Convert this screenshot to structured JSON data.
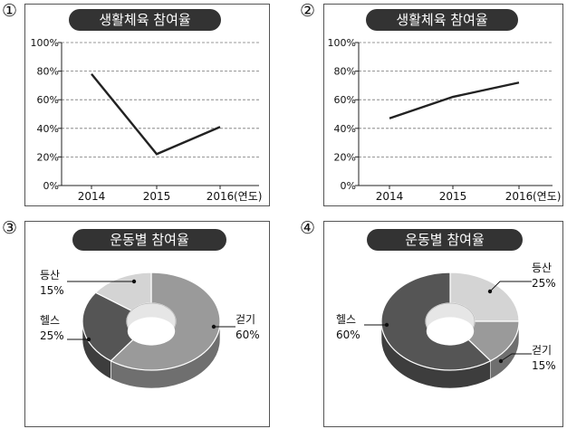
{
  "chart_data": [
    {
      "marker": "①",
      "type": "line",
      "title": "생활체육 참여율",
      "categories": [
        "2014",
        "2015",
        "2016"
      ],
      "unit_label": "(연도)",
      "values": [
        78,
        22,
        41
      ],
      "ylim": [
        0,
        100
      ],
      "yticks": [
        "0%",
        "20%",
        "40%",
        "60%",
        "80%",
        "100%"
      ],
      "grid": true
    },
    {
      "marker": "②",
      "type": "line",
      "title": "생활체육 참여율",
      "categories": [
        "2014",
        "2015",
        "2016"
      ],
      "unit_label": "(연도)",
      "values": [
        47,
        62,
        72
      ],
      "ylim": [
        0,
        100
      ],
      "yticks": [
        "0%",
        "20%",
        "40%",
        "60%",
        "80%",
        "100%"
      ],
      "grid": true
    },
    {
      "marker": "③",
      "type": "pie",
      "title": "운동별 참여율",
      "slices": [
        {
          "label": "걷기",
          "value": 60,
          "value_text": "60%",
          "color": "#9a9a9a"
        },
        {
          "label": "헬스",
          "value": 25,
          "value_text": "25%",
          "color": "#555555"
        },
        {
          "label": "등산",
          "value": 15,
          "value_text": "15%",
          "color": "#d4d4d4"
        }
      ]
    },
    {
      "marker": "④",
      "type": "pie",
      "title": "운동별 참여율",
      "slices": [
        {
          "label": "등산",
          "value": 25,
          "value_text": "25%",
          "color": "#d4d4d4"
        },
        {
          "label": "걷기",
          "value": 15,
          "value_text": "15%",
          "color": "#9a9a9a"
        },
        {
          "label": "헬스",
          "value": 60,
          "value_text": "60%",
          "color": "#555555"
        }
      ]
    }
  ]
}
